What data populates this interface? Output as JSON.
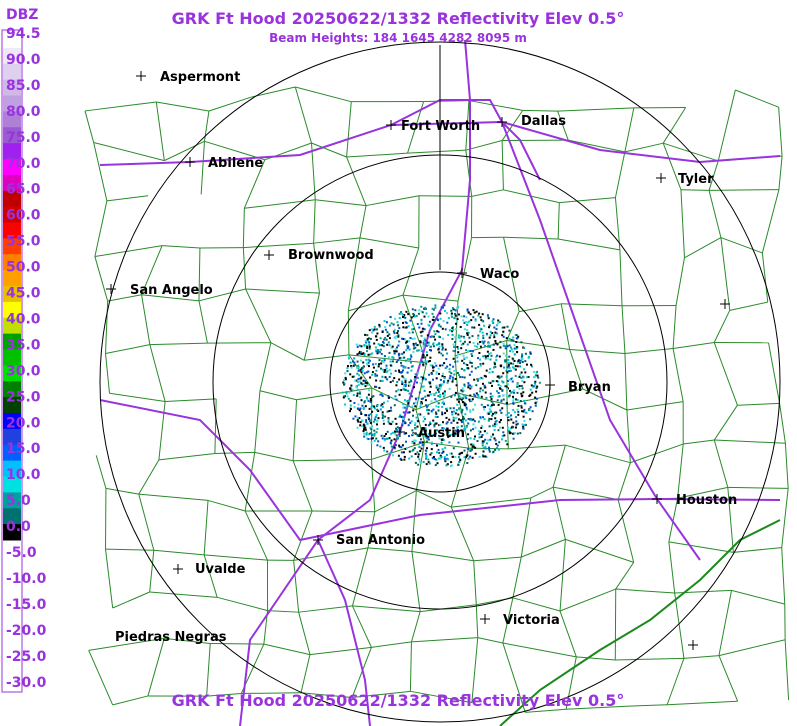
{
  "header": {
    "title": "GRK Ft Hood 20250622/1332 Reflectivity Elev 0.5°",
    "subtitle": "Beam Heights: 184 1645 4282 8095 m"
  },
  "footer_title": "GRK Ft Hood 20250622/1332 Reflectivity Elev 0.5°",
  "legend": {
    "unit": "DBZ",
    "labels": [
      "94.5",
      "90.0",
      "85.0",
      "80.0",
      "75.0",
      "70.0",
      "65.0",
      "60.0",
      "55.0",
      "50.0",
      "45.0",
      "40.0",
      "35.0",
      "30.0",
      "25.0",
      "20.0",
      "15.0",
      "10.0",
      "5.0",
      "0.0",
      "-5.0",
      "-10.0",
      "-15.0",
      "-20.0",
      "-25.0",
      "-30.0"
    ]
  },
  "cities": [
    "Aspermont",
    "Fort Worth",
    "Dallas",
    "Abilene",
    "Tyler",
    "Brownwood",
    "Waco",
    "San Angelo",
    "Bryan",
    "Austin",
    "Houston",
    "San Antonio",
    "Uvalde",
    "Victoria",
    "Piedras Negras"
  ]
}
